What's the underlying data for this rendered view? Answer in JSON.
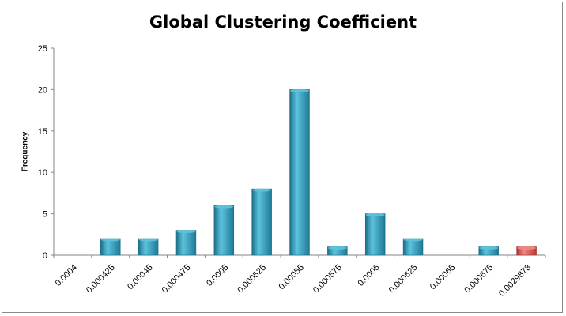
{
  "chart_data": {
    "type": "bar",
    "title": "Global Clustering Coefficient",
    "xlabel": "",
    "ylabel": "Frequency",
    "ylim": [
      0,
      25
    ],
    "yticks": [
      "0",
      "5",
      "10",
      "15",
      "20",
      "25"
    ],
    "categories": [
      "0.0004",
      "0.000425",
      "0.00045",
      "0.000475",
      "0.0005",
      "0.000525",
      "0.00055",
      "0.000575",
      "0.0006",
      "0.000625",
      "0.00065",
      "0.000675",
      "0.0029873"
    ],
    "values": [
      0,
      2,
      2,
      3,
      6,
      8,
      20,
      1,
      5,
      2,
      0,
      1,
      1
    ],
    "highlight_index": 12,
    "grid": false,
    "legend": "none",
    "colors": {
      "bar": "#2e9bbb",
      "bar_light": "#5cc3de",
      "bar_dark": "#1c6f88",
      "highlight": "#d9534f",
      "highlight_light": "#f08a85",
      "highlight_dark": "#a8322e",
      "axis": "#868686"
    }
  }
}
